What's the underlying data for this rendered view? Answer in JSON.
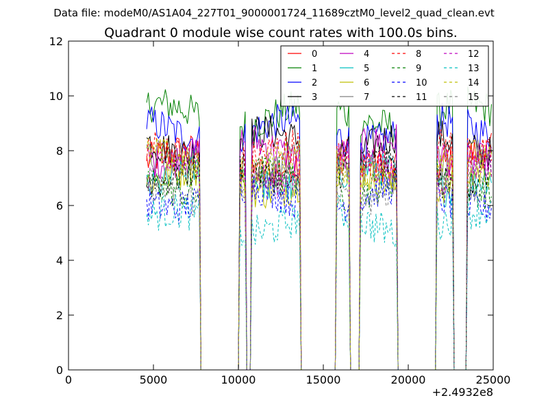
{
  "chart_data": {
    "type": "line",
    "suptitle": "Data file: modeM0/AS1A04_227T01_9000001724_11689cztM0_level2_quad_clean.evt",
    "title": "Quadrant 0 module wise count rates with 100.0s bins.",
    "xlabel": "",
    "ylabel": "",
    "x_offset_label": "+2.4932e8",
    "xlim": [
      0,
      25000
    ],
    "ylim": [
      0,
      12
    ],
    "xticks": [
      0,
      5000,
      10000,
      15000,
      20000,
      25000
    ],
    "yticks": [
      0,
      2,
      4,
      6,
      8,
      10,
      12
    ],
    "grid": false,
    "legend": {
      "placement": "top-right",
      "columns": 4
    },
    "bin_size_s": 100.0,
    "x_start": 4600,
    "x_step": 100,
    "good_time_intervals": [
      [
        4600,
        7700
      ],
      [
        10100,
        10400
      ],
      [
        10800,
        13600
      ],
      [
        15800,
        16500
      ],
      [
        17200,
        19300
      ],
      [
        21700,
        22600
      ],
      [
        23500,
        24900
      ]
    ],
    "series": [
      {
        "name": "0",
        "color": "#ff0000",
        "dash": "solid",
        "level": 7.6
      },
      {
        "name": "1",
        "color": "#008000",
        "dash": "solid",
        "level": 9.3
      },
      {
        "name": "2",
        "color": "#0000ff",
        "dash": "solid",
        "level": 8.7
      },
      {
        "name": "3",
        "color": "#000000",
        "dash": "solid",
        "level": 8.3
      },
      {
        "name": "4",
        "color": "#bf00bf",
        "dash": "solid",
        "level": 8.0
      },
      {
        "name": "5",
        "color": "#00bfbf",
        "dash": "solid",
        "level": 7.0
      },
      {
        "name": "6",
        "color": "#bfbf00",
        "dash": "solid",
        "level": 6.9
      },
      {
        "name": "7",
        "color": "#808080",
        "dash": "solid",
        "level": 7.4
      },
      {
        "name": "8",
        "color": "#ff0000",
        "dash": "dashed",
        "level": 7.8
      },
      {
        "name": "9",
        "color": "#008000",
        "dash": "dashed",
        "level": 6.8
      },
      {
        "name": "10",
        "color": "#0000ff",
        "dash": "dashed",
        "level": 6.3
      },
      {
        "name": "11",
        "color": "#000000",
        "dash": "dashed",
        "level": 7.2
      },
      {
        "name": "12",
        "color": "#bf00bf",
        "dash": "dashed",
        "level": 7.3
      },
      {
        "name": "13",
        "color": "#00bfbf",
        "dash": "dashed",
        "level": 5.4
      },
      {
        "name": "14",
        "color": "#bfbf00",
        "dash": "dashed",
        "level": 7.5
      },
      {
        "name": "15",
        "color": "#808080",
        "dash": "dashed",
        "level": 6.6
      }
    ]
  }
}
